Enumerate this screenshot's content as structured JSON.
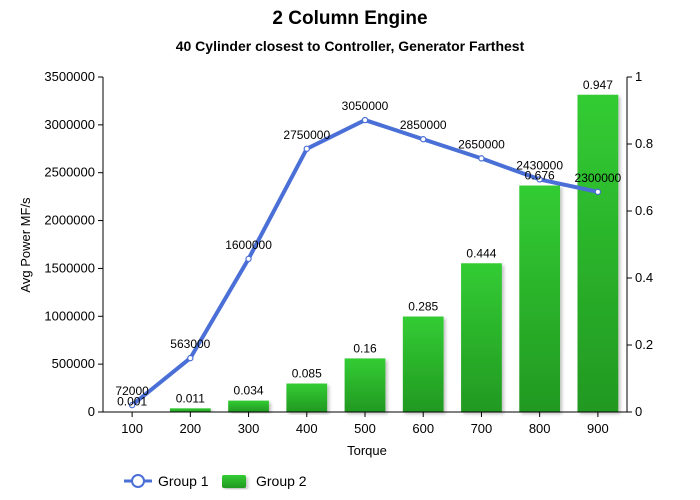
{
  "chart_data": {
    "type": "bar",
    "title": "2 Column Engine",
    "subtitle": "40 Cylinder closest to Controller, Generator Farthest",
    "xlabel": "Torque",
    "ylabel": "Avg Power MF/s",
    "categories": [
      "100",
      "200",
      "300",
      "400",
      "500",
      "600",
      "700",
      "800",
      "900"
    ],
    "y_left": {
      "min": 0,
      "max": 3500000,
      "ticks": [
        0,
        500000,
        1000000,
        1500000,
        2000000,
        2500000,
        3000000,
        3500000
      ]
    },
    "y_right": {
      "min": 0,
      "max": 1,
      "ticks": [
        0,
        0.2,
        0.4,
        0.6,
        0.8,
        1
      ]
    },
    "series": [
      {
        "name": "Group 1",
        "type": "line",
        "axis": "left",
        "color": "#4a6fd6",
        "values": [
          72000,
          563000,
          1600000,
          2750000,
          3050000,
          2850000,
          2650000,
          2430000,
          2300000
        ],
        "labels": [
          "72000",
          "563000",
          "1600000",
          "2750000",
          "3050000",
          "2850000",
          "2650000",
          "2430000",
          "2300000"
        ]
      },
      {
        "name": "Group 2",
        "type": "bar",
        "axis": "right",
        "color": "#2db82d",
        "values": [
          0.001,
          0.011,
          0.034,
          0.085,
          0.16,
          0.285,
          0.444,
          0.676,
          0.947
        ],
        "labels": [
          "0.001",
          "0.011",
          "0.034",
          "0.085",
          "0.16",
          "0.285",
          "0.444",
          "0.676",
          "0.947"
        ]
      }
    ],
    "legend_position": "bottom-left",
    "grid": false
  }
}
